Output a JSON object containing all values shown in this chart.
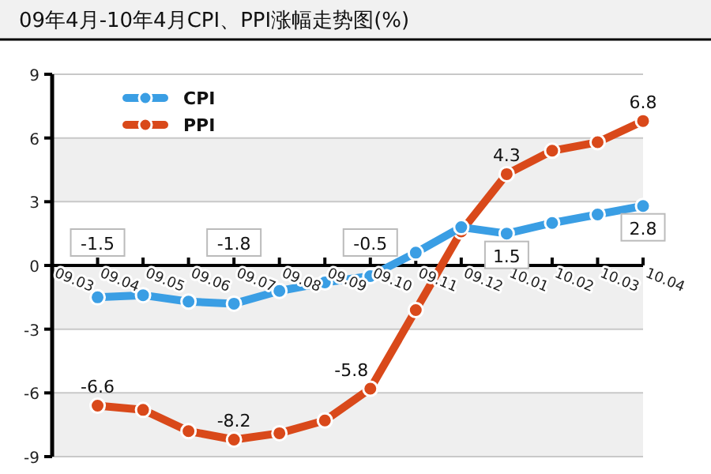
{
  "chart_data": {
    "type": "line",
    "title": "09年4月-10年4月CPI、PPI涨幅走势图(%)",
    "categories": [
      "09.03",
      "09.04",
      "09.05",
      "09.06",
      "09.07",
      "09.08",
      "09.09",
      "09.10",
      "09.11",
      "09.12",
      "10.01",
      "10.02",
      "10.03",
      "10.04"
    ],
    "series": [
      {
        "name": "CPI",
        "color": "#3a9ee4",
        "values": [
          null,
          -1.5,
          -1.4,
          -1.7,
          -1.8,
          -1.2,
          -0.8,
          -0.5,
          0.6,
          1.8,
          1.5,
          2.0,
          2.4,
          2.8
        ],
        "value_labels": [
          null,
          "-1.5",
          null,
          null,
          "-1.8",
          null,
          null,
          "-0.5",
          null,
          null,
          "1.5",
          null,
          null,
          "2.8"
        ]
      },
      {
        "name": "PPI",
        "color": "#d9491a",
        "values": [
          null,
          -6.6,
          -6.8,
          -7.8,
          -8.2,
          -7.9,
          -7.3,
          -5.8,
          -2.1,
          1.6,
          4.3,
          5.4,
          5.8,
          6.8
        ],
        "value_labels": [
          null,
          "-6.6",
          null,
          null,
          "-8.2",
          null,
          null,
          "-5.8",
          null,
          null,
          "4.3",
          null,
          null,
          "6.8"
        ]
      }
    ],
    "ylim": [
      -9,
      9
    ],
    "yticks": [
      -9,
      -6,
      -3,
      0,
      3,
      6,
      9
    ],
    "grid": "y",
    "legend": "top left",
    "marker": "circle",
    "line_style": "solid"
  }
}
